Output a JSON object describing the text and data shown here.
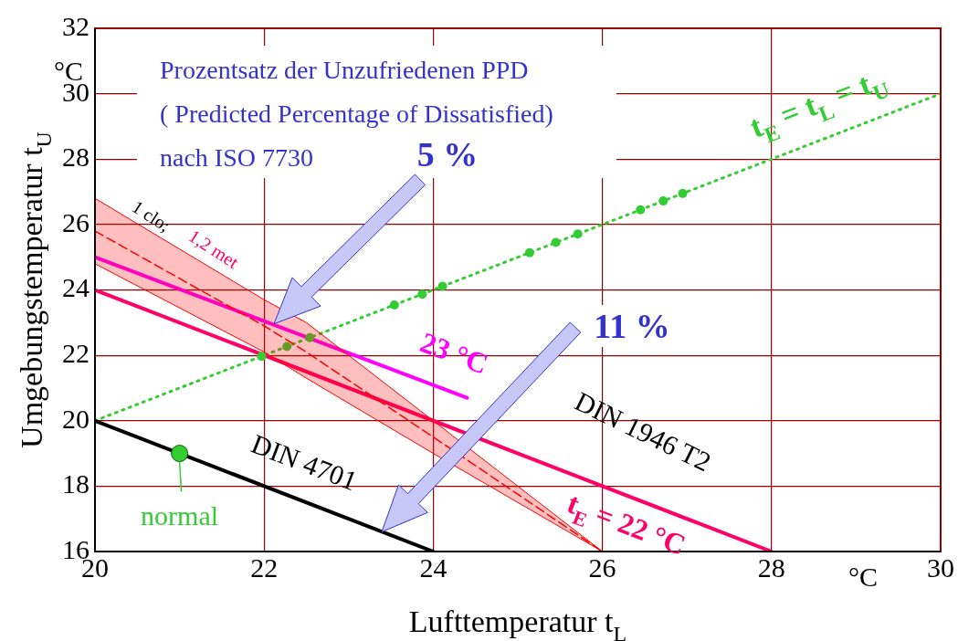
{
  "chart_data": {
    "type": "line",
    "title": "Prozentsatz der Unzufriedenen PPD",
    "subtitle": "( Predicted Percentage of Dissatisfied)",
    "xlabel": "Lufttemperatur t$_{L}$",
    "ylabel": "Umgebungstemperatur t$_{U}$",
    "xlim": [
      20,
      30
    ],
    "ylim": [
      16,
      32
    ],
    "xticks": [
      20,
      22,
      24,
      26,
      28,
      30
    ],
    "yticks": [
      16,
      18,
      20,
      22,
      24,
      26,
      28,
      30,
      32
    ],
    "grid": true,
    "series": [
      {
        "color": "#ff0000",
        "line_style": "dashed",
        "x": [
          20,
          22,
          22.5,
          24,
          26
        ],
        "values": [
          25.8,
          22.9,
          22.1,
          19.5,
          16
        ],
        "lower": [
          24.8,
          22.1,
          21.3,
          19.0,
          16
        ],
        "upper": [
          26.8,
          23.7,
          23.0,
          20.0,
          16
        ]
      },
      {
        "name": "DIN 4701",
        "color": "#000000",
        "line_style": "solid",
        "x": [
          20,
          24
        ],
        "values": [
          20,
          16
        ]
      },
      {
        "name": "t$_{E}$ = 22 °C",
        "color": "#ff0066",
        "line_style": "solid",
        "x": [
          20,
          28
        ],
        "values": [
          24,
          16
        ]
      },
      {
        "name": "23 °C",
        "color": "#ff00ff",
        "line_style": "solid",
        "x": [
          20,
          24.4
        ],
        "values": [
          25,
          20.7
        ]
      },
      {
        "name": "t$_{E}$ = t$_{L}$ = t$_{U}$",
        "color": "#33cc33",
        "line_style": "dotted",
        "x": [
          20,
          30
        ],
        "values": [
          20,
          30
        ]
      },
      {
        "type": "scatter",
        "color": "#33cc33",
        "marker": "circle",
        "x": [
          21.97,
          22.27,
          22.54,
          23.54,
          23.87,
          24.11,
          25.14,
          25.45,
          25.71,
          26.45,
          26.72,
          26.95
        ],
        "values": [
          21.97,
          22.27,
          22.54,
          23.54,
          23.87,
          24.11,
          25.14,
          25.45,
          25.71,
          26.45,
          26.72,
          26.95
        ]
      },
      {
        "name": "normal",
        "type": "scatter",
        "color": "#33cc33",
        "marker": "circle",
        "x": [
          21
        ],
        "values": [
          19
        ]
      }
    ],
    "annotations": [
      "nach ISO 7730",
      "5 %",
      "11 %",
      "1 clo;",
      "1,2 met",
      "DIN 1946 T2",
      "°C",
      "°C"
    ]
  }
}
